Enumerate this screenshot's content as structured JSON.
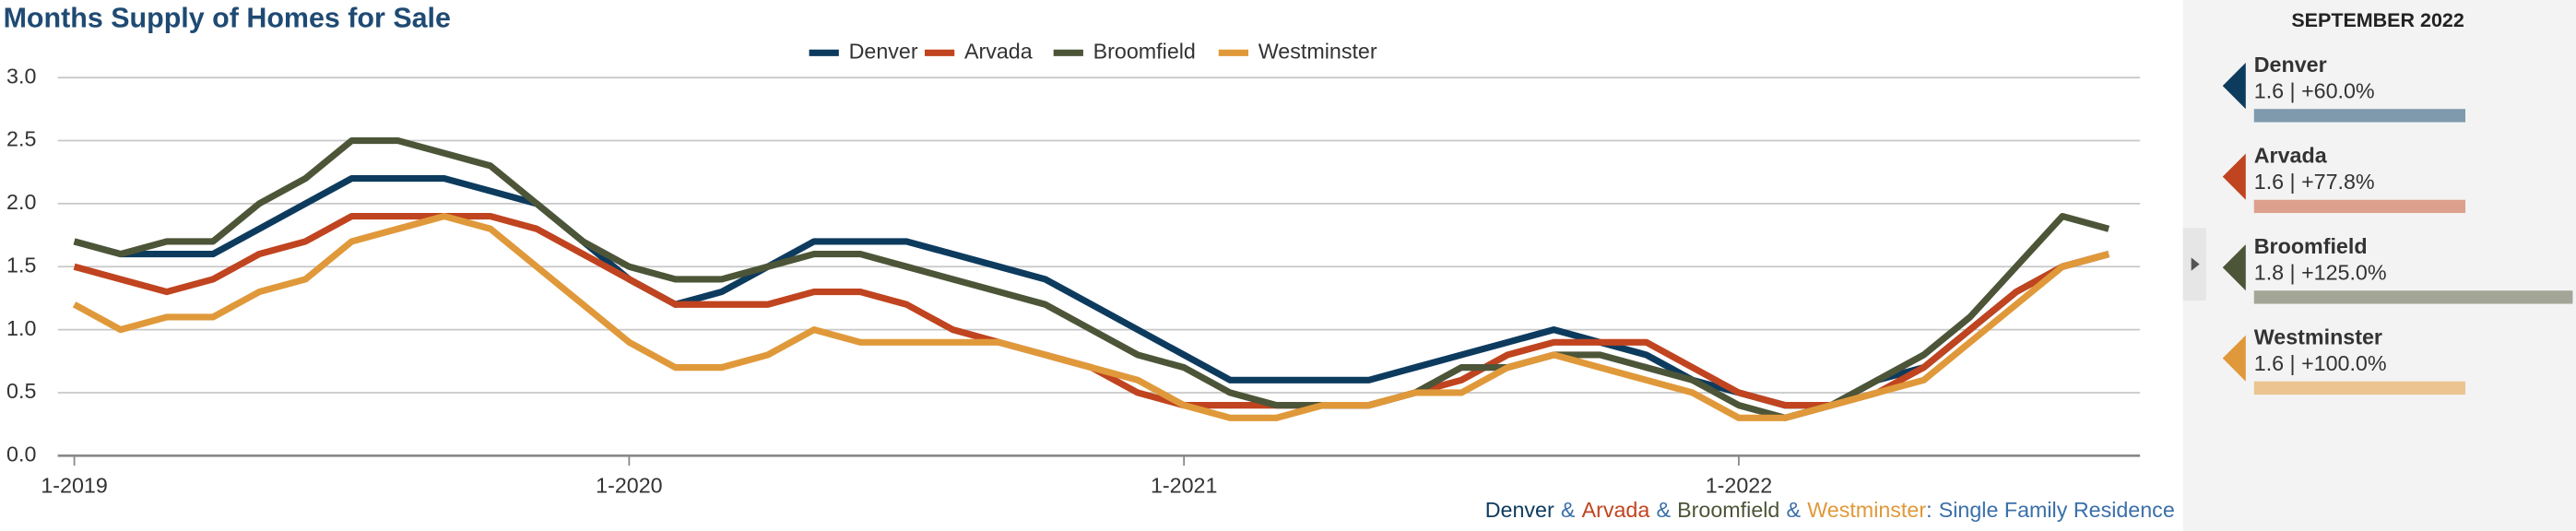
{
  "chart_data": {
    "type": "line",
    "title": "Months Supply of Homes for Sale",
    "categories": [
      "1-2019",
      null,
      null,
      null,
      null,
      null,
      null,
      null,
      null,
      null,
      null,
      null,
      "1-2020",
      null,
      null,
      null,
      null,
      null,
      null,
      null,
      null,
      null,
      null,
      null,
      "1-2021",
      null,
      null,
      null,
      null,
      null,
      null,
      null,
      null,
      null,
      null,
      null,
      "1-2022",
      null,
      null,
      null,
      null,
      null,
      null,
      null,
      null
    ],
    "series": [
      {
        "name": "Denver",
        "color": "#0d3b5e",
        "values": [
          1.7,
          1.6,
          1.6,
          1.6,
          1.8,
          2.0,
          2.2,
          2.2,
          2.2,
          2.1,
          2.0,
          1.7,
          1.4,
          1.2,
          1.3,
          1.5,
          1.7,
          1.7,
          1.7,
          1.6,
          1.5,
          1.4,
          1.2,
          1.0,
          0.8,
          0.6,
          0.6,
          0.6,
          0.6,
          0.7,
          0.8,
          0.9,
          1.0,
          0.9,
          0.8,
          0.6,
          0.5,
          0.4,
          0.4,
          0.6,
          0.7,
          1.0,
          1.3,
          1.5,
          1.6
        ]
      },
      {
        "name": "Arvada",
        "color": "#c0441f",
        "values": [
          1.5,
          1.4,
          1.3,
          1.4,
          1.6,
          1.7,
          1.9,
          1.9,
          1.9,
          1.9,
          1.8,
          1.6,
          1.4,
          1.2,
          1.2,
          1.2,
          1.3,
          1.3,
          1.2,
          1.0,
          0.9,
          0.8,
          0.7,
          0.5,
          0.4,
          0.4,
          0.4,
          0.4,
          0.4,
          0.5,
          0.6,
          0.8,
          0.9,
          0.9,
          0.9,
          0.7,
          0.5,
          0.4,
          0.4,
          0.5,
          0.7,
          1.0,
          1.3,
          1.5,
          1.6
        ]
      },
      {
        "name": "Broomfield",
        "color": "#4d5538",
        "values": [
          1.7,
          1.6,
          1.7,
          1.7,
          2.0,
          2.2,
          2.5,
          2.5,
          2.4,
          2.3,
          2.0,
          1.7,
          1.5,
          1.4,
          1.4,
          1.5,
          1.6,
          1.6,
          1.5,
          1.4,
          1.3,
          1.2,
          1.0,
          0.8,
          0.7,
          0.5,
          0.4,
          0.4,
          0.4,
          0.5,
          0.7,
          0.7,
          0.8,
          0.8,
          0.7,
          0.6,
          0.4,
          0.3,
          0.4,
          0.6,
          0.8,
          1.1,
          1.5,
          1.9,
          1.8
        ]
      },
      {
        "name": "Westminster",
        "color": "#e0993a",
        "values": [
          1.2,
          1.0,
          1.1,
          1.1,
          1.3,
          1.4,
          1.7,
          1.8,
          1.9,
          1.8,
          1.5,
          1.2,
          0.9,
          0.7,
          0.7,
          0.8,
          1.0,
          0.9,
          0.9,
          0.9,
          0.9,
          0.8,
          0.7,
          0.6,
          0.4,
          0.3,
          0.3,
          0.4,
          0.4,
          0.5,
          0.5,
          0.7,
          0.8,
          0.7,
          0.6,
          0.5,
          0.3,
          0.3,
          0.4,
          0.5,
          0.6,
          0.9,
          1.2,
          1.5,
          1.6
        ]
      }
    ],
    "ylim": [
      0,
      3
    ],
    "yticks": [
      {
        "value": 0,
        "label": "0.0"
      },
      {
        "value": 0.5,
        "label": "0.5"
      },
      {
        "value": 1,
        "label": "1.0"
      },
      {
        "value": 1.5,
        "label": "1.5"
      },
      {
        "value": 2,
        "label": "2.0"
      },
      {
        "value": 2.5,
        "label": "2.5"
      },
      {
        "value": 3,
        "label": "3.0"
      }
    ],
    "grid": true,
    "legend": "top",
    "footer": [
      "Denver",
      "&",
      "Arvada",
      "&",
      "Broomfield",
      "&",
      "Westminster",
      ":",
      "Single Family Residence"
    ]
  },
  "sidebar": {
    "title": "SEPTEMBER 2022",
    "items": [
      {
        "name": "Denver",
        "text": "1.6 | +60.0%"
      },
      {
        "name": "Arvada",
        "text": "1.6 | +77.8%"
      },
      {
        "name": "Broomfield",
        "text": "1.8 | +125.0%"
      },
      {
        "name": "Westminster",
        "text": "1.6 | +100.0%"
      }
    ]
  }
}
